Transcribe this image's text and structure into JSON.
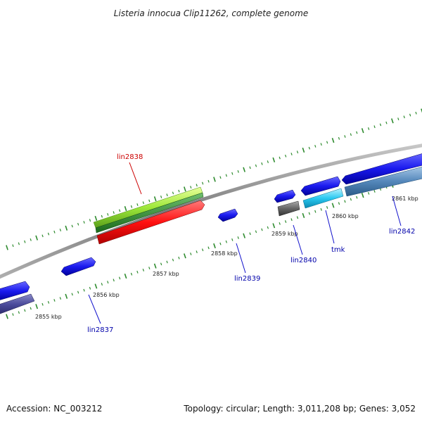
{
  "title": "Listeria innocua Clip11262, complete genome",
  "footer": {
    "accession": "Accession: NC_003212",
    "summary": "Topology: circular; Length: 3,011,208 bp; Genes: 3,052"
  },
  "colors": {
    "backbone": "#888888",
    "tick": "#2e8b2e",
    "label_highlight": "#cc0000",
    "label_normal": "#0000aa",
    "connector": "#1111cc"
  },
  "ruler": [
    "2855 kbp",
    "2856 kbp",
    "2857 kbp",
    "2858 kbp",
    "2859 kbp",
    "2860 kbp",
    "2861 kbp"
  ],
  "gene_labels": [
    "lin2838",
    "lin2837",
    "lin2839",
    "lin2840",
    "tmk",
    "lin2842"
  ]
}
